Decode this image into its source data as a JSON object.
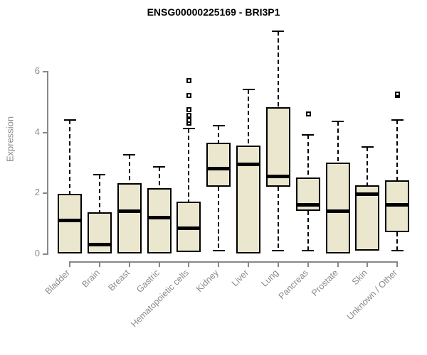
{
  "title": "ENSG00000225169 - BRI3P1",
  "chart_data": {
    "type": "boxplot",
    "title": "ENSG00000225169 - BRI3P1",
    "xlabel": "",
    "ylabel": "Expression",
    "yticks": [
      0,
      2,
      4,
      6
    ],
    "ylim": [
      0,
      7.4
    ],
    "grid": false,
    "legend": "none",
    "box_fill": "#EBE7CF",
    "box_border": "#000000",
    "axis_color": "#888888",
    "label_color": "#8a8a8a",
    "categories": [
      "Bladder",
      "Brain",
      "Breast",
      "Gastric",
      "Hematopoietic cells",
      "Kidney",
      "Liver",
      "Lung",
      "Pancreas",
      "Prostate",
      "Skin",
      "Unknown / Other"
    ],
    "boxes": [
      {
        "category": "Bladder",
        "min": 0,
        "q1": 0,
        "median": 1.1,
        "q3": 1.95,
        "max": 4.4,
        "outliers": []
      },
      {
        "category": "Brain",
        "min": 0,
        "q1": 0,
        "median": 0.3,
        "q3": 1.35,
        "max": 2.6,
        "outliers": []
      },
      {
        "category": "Breast",
        "min": 0,
        "q1": 0,
        "median": 1.4,
        "q3": 2.3,
        "max": 3.25,
        "outliers": []
      },
      {
        "category": "Gastric",
        "min": 0,
        "q1": 0,
        "median": 1.2,
        "q3": 2.15,
        "max": 2.85,
        "outliers": []
      },
      {
        "category": "Hematopoietic cells",
        "min": 0.05,
        "q1": 0.05,
        "median": 0.85,
        "q3": 1.7,
        "max": 4.1,
        "outliers": [
          4.3,
          4.4,
          4.5,
          4.55,
          4.75,
          5.2,
          5.7
        ]
      },
      {
        "category": "Kidney",
        "min": 0.1,
        "q1": 2.2,
        "median": 2.8,
        "q3": 3.65,
        "max": 4.2,
        "outliers": []
      },
      {
        "category": "Liver",
        "min": 0,
        "q1": 0,
        "median": 2.95,
        "q3": 3.55,
        "max": 5.4,
        "outliers": []
      },
      {
        "category": "Lung",
        "min": 0.1,
        "q1": 2.2,
        "median": 2.55,
        "q3": 4.8,
        "max": 7.3,
        "outliers": []
      },
      {
        "category": "Pancreas",
        "min": 0.1,
        "q1": 1.4,
        "median": 1.6,
        "q3": 2.5,
        "max": 3.9,
        "outliers": [
          4.6
        ]
      },
      {
        "category": "Prostate",
        "min": 0,
        "q1": 0,
        "median": 1.4,
        "q3": 3.0,
        "max": 4.35,
        "outliers": []
      },
      {
        "category": "Skin",
        "min": 0.1,
        "q1": 0.1,
        "median": 1.95,
        "q3": 2.25,
        "max": 3.5,
        "outliers": []
      },
      {
        "category": "Unknown / Other",
        "min": 0.1,
        "q1": 0.7,
        "median": 1.6,
        "q3": 2.4,
        "max": 4.4,
        "outliers": [
          5.2,
          5.25
        ]
      }
    ]
  }
}
